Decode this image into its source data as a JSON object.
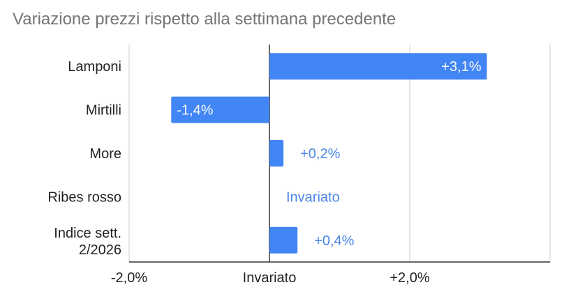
{
  "chart_data": {
    "type": "bar",
    "orientation": "horizontal",
    "title": "Variazione prezzi rispetto alla settimana precedente",
    "categories": [
      "Lamponi",
      "Mirtilli",
      "More",
      "Ribes rosso",
      "Indice sett. 2/2026"
    ],
    "values": [
      3.1,
      -1.4,
      0.2,
      0.0,
      0.4
    ],
    "data_labels": [
      "+3,1%",
      "-1,4%",
      "+0,2%",
      "Invariato",
      "+0,4%"
    ],
    "x_ticks": [
      {
        "value": -2.0,
        "label": "-2,0%"
      },
      {
        "value": 0.0,
        "label": "Invariato"
      },
      {
        "value": 2.0,
        "label": "+2,0%"
      }
    ],
    "xlim": [
      -2.0,
      4.0
    ],
    "grid": true,
    "legend": "none",
    "colors": {
      "bar": "#4285f4",
      "label_outside": "#4a86e8",
      "label_inside": "#ffffff",
      "grid": "#cccccc",
      "zero_line": "#333333"
    }
  }
}
